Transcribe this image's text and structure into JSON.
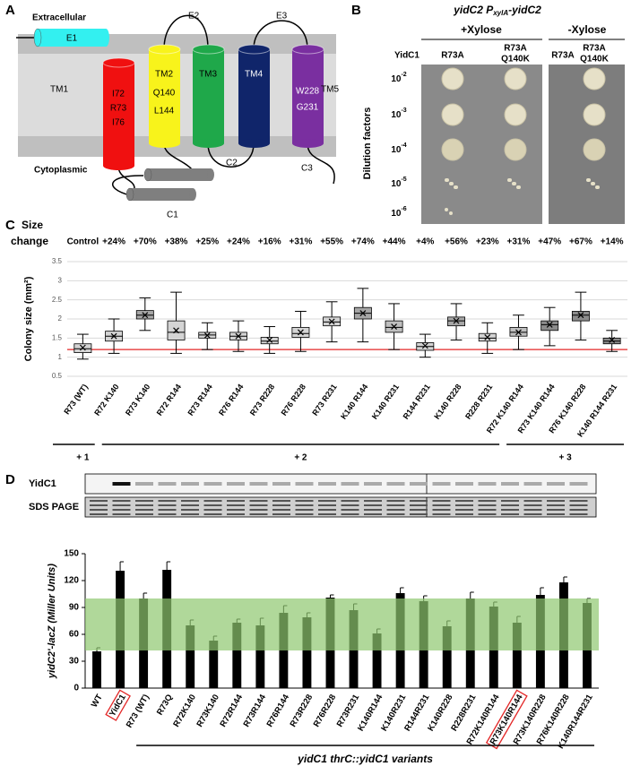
{
  "topology": {
    "label": "A",
    "extracellular": "Extracellular",
    "cytoplasmic": "Cytoplasmic",
    "E1": "E1",
    "TM1": "TM1",
    "TM1_residues": [
      "I72",
      "R73",
      "I76"
    ],
    "TM2": "TM2",
    "TM2_residues": [
      "Q140",
      "L144"
    ],
    "TM3": "TM3",
    "TM4": "TM4",
    "TM5": "TM5",
    "TM5_residues": [
      "W228",
      "G231"
    ],
    "E2": "E2",
    "E3": "E3",
    "C1": "C1",
    "C2": "C2",
    "C3": "C3"
  },
  "plates": {
    "label": "B",
    "title": {
      "main": "yidC2 P",
      "sub": "xylA",
      "tail": "-yidC2"
    },
    "conditions": [
      "+Xylose",
      "-Xylose"
    ],
    "row_label": "YidC1",
    "strains": [
      [
        "R73A"
      ],
      [
        "R73A",
        "Q140K"
      ]
    ],
    "dilutions": [
      {
        "base": "10",
        "exp": "-2"
      },
      {
        "base": "10",
        "exp": "-3"
      },
      {
        "base": "10",
        "exp": "-4"
      },
      {
        "base": "10",
        "exp": "-5"
      },
      {
        "base": "10",
        "exp": "-6"
      }
    ],
    "axis_label": "Dilution factors"
  },
  "chart_data": [
    {
      "type": "box",
      "panel_label": "C",
      "size_change_title": [
        "Size",
        "change"
      ],
      "categories": [
        "R73 (WT)",
        "R72 K140",
        "R73 K140",
        "R72 R144",
        "R73 R144",
        "R76 R144",
        "R73 R228",
        "R76 R228",
        "R73 R231",
        "K140 R144",
        "K140 R231",
        "R144 R231",
        "K140 R228",
        "R228 R231",
        "R72 K140 R144",
        "R73 K140 R144",
        "R76 K140 R228",
        "K140 R144 R231"
      ],
      "size_change": [
        "Control",
        "+24%",
        "+70%",
        "+38%",
        "+25%",
        "+24%",
        "+16%",
        "+31%",
        "+55%",
        "+74%",
        "+44%",
        "+4%",
        "+56%",
        "+23%",
        "+31%",
        "+47%",
        "+67%",
        "+14%"
      ],
      "boxes": [
        {
          "min": 0.95,
          "q1": 1.12,
          "median": 1.22,
          "q3": 1.35,
          "max": 1.6,
          "mean": 1.25
        },
        {
          "min": 1.1,
          "q1": 1.42,
          "median": 1.55,
          "q3": 1.68,
          "max": 2.0,
          "mean": 1.55
        },
        {
          "min": 1.7,
          "q1": 2.0,
          "median": 2.1,
          "q3": 2.22,
          "max": 2.55,
          "mean": 2.1
        },
        {
          "min": 1.1,
          "q1": 1.45,
          "median": 1.65,
          "q3": 1.95,
          "max": 2.7,
          "mean": 1.7
        },
        {
          "min": 1.2,
          "q1": 1.5,
          "median": 1.58,
          "q3": 1.65,
          "max": 1.9,
          "mean": 1.57
        },
        {
          "min": 1.15,
          "q1": 1.45,
          "median": 1.55,
          "q3": 1.65,
          "max": 1.95,
          "mean": 1.55
        },
        {
          "min": 1.1,
          "q1": 1.35,
          "median": 1.42,
          "q3": 1.52,
          "max": 1.8,
          "mean": 1.45
        },
        {
          "min": 1.15,
          "q1": 1.52,
          "median": 1.62,
          "q3": 1.78,
          "max": 2.2,
          "mean": 1.65
        },
        {
          "min": 1.4,
          "q1": 1.82,
          "median": 1.92,
          "q3": 2.05,
          "max": 2.45,
          "mean": 1.93
        },
        {
          "min": 1.4,
          "q1": 2.0,
          "median": 2.15,
          "q3": 2.3,
          "max": 2.8,
          "mean": 2.15
        },
        {
          "min": 1.2,
          "q1": 1.65,
          "median": 1.78,
          "q3": 1.95,
          "max": 2.4,
          "mean": 1.8
        },
        {
          "min": 1.0,
          "q1": 1.18,
          "median": 1.28,
          "q3": 1.38,
          "max": 1.6,
          "mean": 1.3
        },
        {
          "min": 1.45,
          "q1": 1.82,
          "median": 1.95,
          "q3": 2.05,
          "max": 2.4,
          "mean": 1.95
        },
        {
          "min": 1.1,
          "q1": 1.42,
          "median": 1.5,
          "q3": 1.62,
          "max": 1.9,
          "mean": 1.52
        },
        {
          "min": 1.2,
          "q1": 1.55,
          "median": 1.65,
          "q3": 1.78,
          "max": 2.1,
          "mean": 1.65
        },
        {
          "min": 1.3,
          "q1": 1.7,
          "median": 1.85,
          "q3": 1.95,
          "max": 2.3,
          "mean": 1.85
        },
        {
          "min": 1.45,
          "q1": 1.95,
          "median": 2.1,
          "q3": 2.2,
          "max": 2.7,
          "mean": 2.1
        },
        {
          "min": 1.15,
          "q1": 1.35,
          "median": 1.42,
          "q3": 1.5,
          "max": 1.7,
          "mean": 1.45
        }
      ],
      "colors": [
        "#d4d4d4",
        "#d4d4d4",
        "#a6a6a6",
        "#d4d4d4",
        "#d4d4d4",
        "#d4d4d4",
        "#d4d4d4",
        "#d4d4d4",
        "#d4d4d4",
        "#a6a6a6",
        "#bfbfbf",
        "#d4d4d4",
        "#a6a6a6",
        "#d4d4d4",
        "#bfbfbf",
        "#8c8c8c",
        "#8c8c8c",
        "#8c8c8c"
      ],
      "y_label": "Colony size (mm²)",
      "ylim": [
        0.5,
        3.5
      ],
      "yticks": [
        0.5,
        1,
        {
          "value": 1.5,
          "label": "1.5"
        },
        2,
        2.5,
        3,
        3.5
      ],
      "grid": true,
      "reference_line": 1.2,
      "reference_color": "#e32626",
      "groups": [
        "+ 1",
        "+ 2",
        "+ 3"
      ]
    },
    {
      "type": "bar",
      "panel_label": "D",
      "blots": [
        "YidC1",
        "SDS PAGE"
      ],
      "categories": [
        "WT",
        "YidC1",
        "R73 (WT)",
        "R73Q",
        "R72K140",
        "R73K140",
        "R72R144",
        "R73R144",
        "R76R144",
        "R73R228",
        "R76R228",
        "R73R231",
        "K140R144",
        "K140R231",
        "R144R231",
        "K140R228",
        "R228R231",
        "R72K140R144",
        "R73K140R144",
        "R73K140R228",
        "R76K140R228",
        "K140R144R231"
      ],
      "values": [
        41,
        131,
        100,
        132,
        70,
        53,
        73,
        70,
        84,
        79,
        101,
        87,
        61,
        106,
        97,
        69,
        100,
        91,
        73,
        104,
        118,
        95
      ],
      "errors": [
        4,
        10,
        6,
        9,
        6,
        5,
        4,
        8,
        8,
        5,
        3,
        7,
        5,
        6,
        6,
        6,
        7,
        5,
        7,
        8,
        6,
        5
      ],
      "color": "#000000",
      "band": [
        42,
        100
      ],
      "band_color": "#8ec86f",
      "boxed": [
        1,
        18
      ],
      "box_color": "#e32626",
      "y_label": "yidC2'-lacZ (Miller Units)",
      "x_label": "yidC1 thrC::yidC1 variants",
      "ylim": [
        0,
        150
      ],
      "yticks": [
        0,
        30,
        60,
        90,
        120,
        150
      ]
    }
  ]
}
